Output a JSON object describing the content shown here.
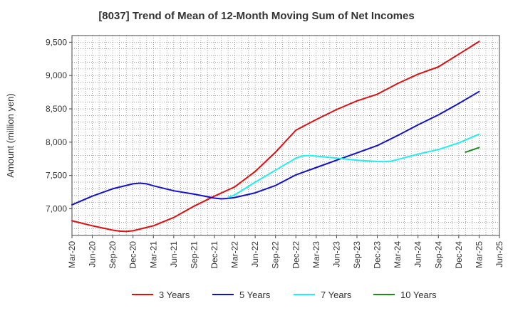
{
  "chart_data": {
    "type": "line",
    "title": "[8037]  Trend of Mean of 12-Month Moving Sum of Net Incomes",
    "xlabel": "",
    "ylabel": "Amount (million yen)",
    "ylim": [
      6600,
      9600
    ],
    "y_ticks": [
      7000,
      7500,
      8000,
      8500,
      9000,
      9500
    ],
    "y_tick_labels": [
      "7,000",
      "7,500",
      "8,000",
      "8,500",
      "9,000",
      "9,500"
    ],
    "x_tick_labels": [
      "Mar-20",
      "Jun-20",
      "Sep-20",
      "Dec-20",
      "Mar-21",
      "Jun-21",
      "Sep-21",
      "Dec-21",
      "Mar-22",
      "Jun-22",
      "Sep-22",
      "Dec-22",
      "Mar-23",
      "Jun-23",
      "Sep-23",
      "Dec-23",
      "Mar-24",
      "Jun-24",
      "Sep-24",
      "Dec-24",
      "Mar-25",
      "Jun-25"
    ],
    "grid": true,
    "legend_position": "bottom",
    "series": [
      {
        "name": "3 Years",
        "color": "#dd1111",
        "points": [
          [
            "Mar-20",
            6820
          ],
          [
            "Jun-20",
            6745
          ],
          [
            "Sep-20",
            6680
          ],
          [
            "Oct-20",
            6665
          ],
          [
            "Nov-20",
            6660
          ],
          [
            "Dec-20",
            6670
          ],
          [
            "Mar-21",
            6745
          ],
          [
            "Jun-21",
            6870
          ],
          [
            "Sep-21",
            7040
          ],
          [
            "Dec-21",
            7190
          ],
          [
            "Mar-22",
            7330
          ],
          [
            "Jun-22",
            7560
          ],
          [
            "Sep-22",
            7850
          ],
          [
            "Dec-22",
            8180
          ],
          [
            "Mar-23",
            8340
          ],
          [
            "Jun-23",
            8490
          ],
          [
            "Sep-23",
            8620
          ],
          [
            "Dec-23",
            8720
          ],
          [
            "Mar-24",
            8880
          ],
          [
            "Jun-24",
            9020
          ],
          [
            "Sep-24",
            9130
          ],
          [
            "Dec-24",
            9320
          ],
          [
            "Mar-25",
            9510
          ]
        ]
      },
      {
        "name": "5 Years",
        "color": "#1111cc",
        "points": [
          [
            "Mar-20",
            7060
          ],
          [
            "Jun-20",
            7190
          ],
          [
            "Sep-20",
            7300
          ],
          [
            "Dec-20",
            7375
          ],
          [
            "Jan-21",
            7385
          ],
          [
            "Feb-21",
            7375
          ],
          [
            "Mar-21",
            7345
          ],
          [
            "Jun-21",
            7270
          ],
          [
            "Sep-21",
            7220
          ],
          [
            "Dec-21",
            7160
          ],
          [
            "Jan-22",
            7150
          ],
          [
            "Feb-22",
            7155
          ],
          [
            "Mar-22",
            7170
          ],
          [
            "Jun-22",
            7240
          ],
          [
            "Sep-22",
            7350
          ],
          [
            "Dec-22",
            7510
          ],
          [
            "Mar-23",
            7620
          ],
          [
            "Jun-23",
            7730
          ],
          [
            "Sep-23",
            7840
          ],
          [
            "Dec-23",
            7950
          ],
          [
            "Mar-24",
            8100
          ],
          [
            "Jun-24",
            8260
          ],
          [
            "Sep-24",
            8410
          ],
          [
            "Dec-24",
            8580
          ],
          [
            "Mar-25",
            8760
          ]
        ]
      },
      {
        "name": "7 Years",
        "color": "#22eeee",
        "points": [
          [
            "Feb-22",
            7170
          ],
          [
            "Mar-22",
            7210
          ],
          [
            "Jun-22",
            7400
          ],
          [
            "Sep-22",
            7580
          ],
          [
            "Dec-22",
            7760
          ],
          [
            "Jan-23",
            7795
          ],
          [
            "Feb-23",
            7800
          ],
          [
            "Mar-23",
            7790
          ],
          [
            "Jun-23",
            7760
          ],
          [
            "Sep-23",
            7730
          ],
          [
            "Dec-23",
            7710
          ],
          [
            "Jan-24",
            7708
          ],
          [
            "Feb-24",
            7715
          ],
          [
            "Mar-24",
            7740
          ],
          [
            "Jun-24",
            7820
          ],
          [
            "Sep-24",
            7890
          ],
          [
            "Dec-24",
            7990
          ],
          [
            "Mar-25",
            8120
          ]
        ]
      },
      {
        "name": "10 Years",
        "color": "#228822",
        "points": [
          [
            "Jan-25",
            7850
          ],
          [
            "Mar-25",
            7920
          ]
        ]
      }
    ]
  }
}
